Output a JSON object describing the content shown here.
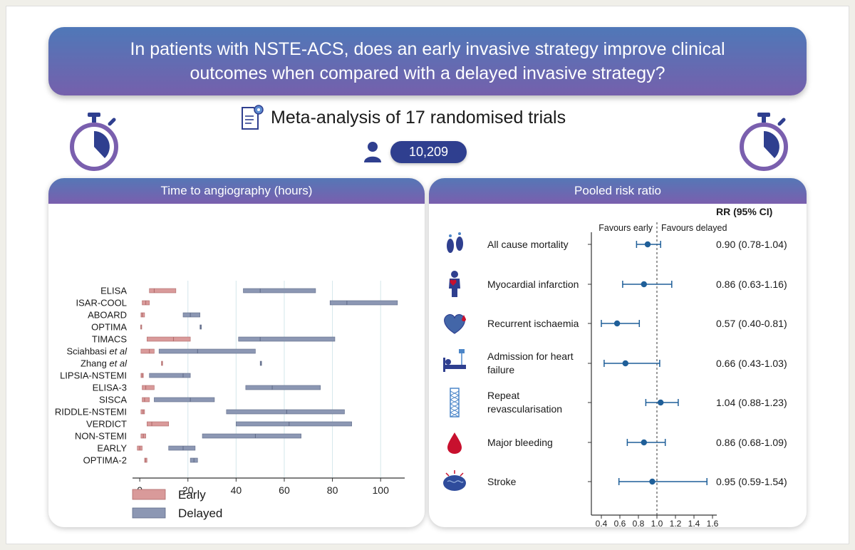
{
  "header": {
    "question": "In patients with NSTE-ACS, does an early invasive strategy improve clinical outcomes when compared with a delayed invasive strategy?",
    "meta_title": "Meta-analysis of 17 randomised trials",
    "patient_count": "10,209"
  },
  "colors": {
    "banner_top": "#4f78b8",
    "banner_bottom": "#7560ac",
    "early": "#d99a9a",
    "delayed": "#8c97b3",
    "forest": "#1f5f99",
    "icon_navy": "#2f3f8f"
  },
  "icons": [
    "document-gear-icon",
    "patient-icon",
    "stopwatch-icon",
    "footprints-icon",
    "myocardial-infarction-icon",
    "heart-icon",
    "hospital-bed-icon",
    "stent-icon",
    "blood-drop-icon",
    "brain-icon"
  ],
  "chart_data": [
    {
      "type": "bar",
      "subtype": "range",
      "title": "Time to angiography (hours)",
      "x_ticks": [
        0,
        20,
        40,
        60,
        80,
        100
      ],
      "xlim": [
        -3,
        110
      ],
      "grid": true,
      "legend": {
        "position": "bottom-left",
        "entries": [
          "Early",
          "Delayed"
        ]
      },
      "trials": [
        {
          "name": "ELISA",
          "early": [
            4,
            15
          ],
          "early_median": 6,
          "delayed": [
            43,
            73
          ],
          "delayed_median": 50
        },
        {
          "name": "ISAR-COOL",
          "early": [
            1,
            4
          ],
          "early_median": 2.5,
          "delayed": [
            79,
            107
          ],
          "delayed_median": 86
        },
        {
          "name": "ABOARD",
          "early": [
            0.5,
            2
          ],
          "early_median": 1,
          "delayed": [
            18,
            25
          ],
          "delayed_median": 21
        },
        {
          "name": "OPTIMA",
          "early": [
            0.4,
            0.7
          ],
          "early_median": 0.5,
          "delayed": [
            25,
            25.6
          ],
          "delayed_median": 25.3
        },
        {
          "name": "TIMACS",
          "early": [
            3,
            21
          ],
          "early_median": 14,
          "delayed": [
            41,
            81
          ],
          "delayed_median": 50
        },
        {
          "name": "Sciahbasi",
          "name_suffix": "et al",
          "early": [
            0.5,
            6
          ],
          "early_median": 4,
          "delayed": [
            8,
            48
          ],
          "delayed_median": 24
        },
        {
          "name": "Zhang",
          "name_suffix": "et al",
          "early": [
            9,
            9.5
          ],
          "early_median": 9.2,
          "delayed": [
            50,
            50.6
          ],
          "delayed_median": 50.3
        },
        {
          "name": "LIPSIA-NSTEMI",
          "early": [
            0.5,
            1.5
          ],
          "early_median": 1,
          "delayed": [
            4,
            21
          ],
          "delayed_median": 18
        },
        {
          "name": "ELISA-3",
          "early": [
            1,
            6
          ],
          "early_median": 2.5,
          "delayed": [
            44,
            75
          ],
          "delayed_median": 55
        },
        {
          "name": "SISCA",
          "early": [
            1,
            4
          ],
          "early_median": 2,
          "delayed": [
            6,
            31
          ],
          "delayed_median": 21
        },
        {
          "name": "RIDDLE-NSTEMI",
          "early": [
            0.5,
            2
          ],
          "early_median": 1.4,
          "delayed": [
            36,
            85
          ],
          "delayed_median": 61
        },
        {
          "name": "VERDICT",
          "early": [
            3,
            12
          ],
          "early_median": 5,
          "delayed": [
            40,
            88
          ],
          "delayed_median": 62
        },
        {
          "name": "NON-STEMI",
          "early": [
            0.5,
            2.5
          ],
          "early_median": 1.5,
          "delayed": [
            26,
            67
          ],
          "delayed_median": 48
        },
        {
          "name": "EARLY",
          "early": [
            -1,
            1
          ],
          "early_median": 0,
          "delayed": [
            12,
            23
          ],
          "delayed_median": 18
        },
        {
          "name": "OPTIMA-2",
          "early": [
            2,
            3
          ],
          "early_median": 2.5,
          "delayed": [
            21,
            24
          ],
          "delayed_median": 22.5
        }
      ]
    },
    {
      "type": "scatter",
      "subtype": "forest",
      "title": "Pooled risk ratio",
      "column_header": "RR (95% CI)",
      "left_label": "Favours early",
      "right_label": "Favours delayed",
      "reference_value": 1.0,
      "x_ticks": [
        0.4,
        0.6,
        0.8,
        1.0,
        1.2,
        1.4,
        1.6
      ],
      "x_tick_labels": [
        "0.4",
        "0.6",
        "0.8",
        "1.0",
        "1.2",
        "1.4",
        "1.6"
      ],
      "xlim": [
        0.4,
        1.6
      ],
      "outcomes": [
        {
          "label_lines": [
            "All cause mortality"
          ],
          "rr": 0.9,
          "lo": 0.78,
          "hi": 1.04,
          "text": "0.90 (0.78-1.04)",
          "icon": "footprints-icon"
        },
        {
          "label_lines": [
            "Myocardial infarction"
          ],
          "rr": 0.86,
          "lo": 0.63,
          "hi": 1.16,
          "text": "0.86 (0.63-1.16)",
          "icon": "myocardial-infarction-icon"
        },
        {
          "label_lines": [
            "Recurrent ischaemia"
          ],
          "rr": 0.57,
          "lo": 0.4,
          "hi": 0.81,
          "text": "0.57 (0.40-0.81)",
          "icon": "heart-icon"
        },
        {
          "label_lines": [
            "Admission for heart",
            "failure"
          ],
          "rr": 0.66,
          "lo": 0.43,
          "hi": 1.03,
          "text": "0.66 (0.43-1.03)",
          "icon": "hospital-bed-icon"
        },
        {
          "label_lines": [
            "Repeat",
            "revascularisation"
          ],
          "rr": 1.04,
          "lo": 0.88,
          "hi": 1.23,
          "text": "1.04 (0.88-1.23)",
          "icon": "stent-icon"
        },
        {
          "label_lines": [
            "Major bleeding"
          ],
          "rr": 0.86,
          "lo": 0.68,
          "hi": 1.09,
          "text": "0.86 (0.68-1.09)",
          "icon": "blood-drop-icon"
        },
        {
          "label_lines": [
            "Stroke"
          ],
          "rr": 0.95,
          "lo": 0.59,
          "hi": 1.54,
          "text": "0.95 (0.59-1.54)",
          "icon": "brain-icon"
        }
      ]
    }
  ]
}
